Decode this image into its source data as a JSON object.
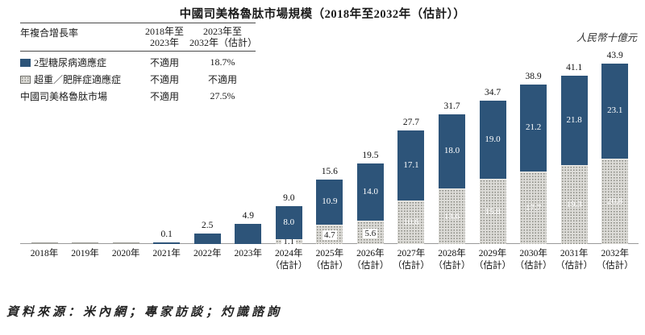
{
  "title": "中國司美格魯肽市場規模（2018年至2032年（估計））",
  "unit_label": "人民幣十億元",
  "source": "資料來源：米內網；專家訪談；灼識諮詢",
  "cagr_table": {
    "title": "年複合增長率",
    "col1": {
      "line1": "2018年至",
      "line2": "2023年"
    },
    "col2": {
      "line1": "2023年至",
      "line2": "2032年（估計）"
    },
    "rows": [
      {
        "swatch": "t2d-blue",
        "label": "2型糖尿病適應症",
        "period1": "不適用",
        "period2": "18.7%"
      },
      {
        "swatch": "obesity-pattern",
        "label": "超重／肥胖症適應症",
        "period1": "不適用",
        "period2": "不適用"
      },
      {
        "swatch": "none",
        "label": "中國司美格魯肽市場",
        "period1": "不適用",
        "period2": "27.5%"
      }
    ]
  },
  "chart_data": {
    "type": "bar",
    "stacked": true,
    "title": "中國司美格魯肽市場規模（2018年至2032年（估計））",
    "ylabel": "人民幣十億元",
    "grid": false,
    "legend_position": "top-left-table",
    "categories": [
      "2018年",
      "2019年",
      "2020年",
      "2021年",
      "2022年",
      "2023年",
      "2024年",
      "2025年",
      "2026年",
      "2027年",
      "2028年",
      "2029年",
      "2030年",
      "2031年",
      "2032年"
    ],
    "estimate_suffix": "（估計）",
    "estimate_from_index": 6,
    "series": [
      {
        "name": "超重／肥胖症適應症",
        "color": "#dcdbd7",
        "pattern": "dots",
        "values": [
          0,
          0,
          0,
          0,
          0,
          0,
          1.1,
          4.7,
          5.6,
          10.6,
          13.6,
          15.8,
          17.7,
          19.3,
          20.8
        ]
      },
      {
        "name": "2型糖尿病適應症",
        "color": "#2d5479",
        "pattern": "solid",
        "values": [
          0,
          0,
          0,
          0.1,
          2.5,
          4.9,
          8.0,
          10.9,
          14.0,
          17.1,
          18.0,
          19.0,
          21.2,
          21.8,
          23.1
        ]
      }
    ],
    "totals": [
      null,
      null,
      null,
      0.1,
      2.5,
      4.9,
      9.0,
      15.6,
      19.5,
      27.7,
      31.7,
      34.7,
      38.9,
      41.1,
      43.9
    ],
    "ylim": [
      0,
      45
    ]
  }
}
